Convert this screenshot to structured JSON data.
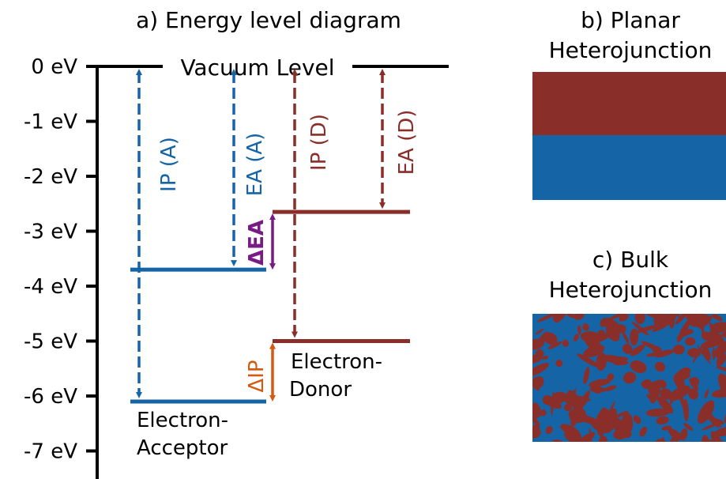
{
  "panels": {
    "a_title": "a) Energy level diagram",
    "b_title_line1": "b) Planar",
    "b_title_line2": "Heterojunction",
    "c_title_line1": "c) Bulk",
    "c_title_line2": "Heterojunction"
  },
  "axis": {
    "ticks": [
      "0 eV",
      "-1 eV",
      "-2 eV",
      "-3 eV",
      "-4 eV",
      "-5 eV",
      "-6 eV",
      "-7 eV"
    ],
    "tick_values": [
      0,
      -1,
      -2,
      -3,
      -4,
      -5,
      -6,
      -7
    ]
  },
  "levels": {
    "vacuum_label": "Vacuum Level",
    "acceptor_lumo_ev": -3.7,
    "acceptor_homo_ev": -6.1,
    "donor_lumo_ev": -2.65,
    "donor_homo_ev": -5.0,
    "acceptor_label_line1": "Electron-",
    "acceptor_label_line2": "Acceptor",
    "donor_label_line1": "Electron-",
    "donor_label_line2": "Donor"
  },
  "arrows": {
    "ip_acceptor": "IP (A)",
    "ea_acceptor": "EA (A)",
    "ip_donor": "IP (D)",
    "ea_donor": "EA (D)",
    "delta_ea": "ΔEA",
    "delta_ip": "ΔIP"
  },
  "colors": {
    "acceptor": "#1565a6",
    "donor": "#8a2e29",
    "delta_ea": "#7a1a86",
    "delta_ip": "#d45a12",
    "axis": "#000000"
  }
}
